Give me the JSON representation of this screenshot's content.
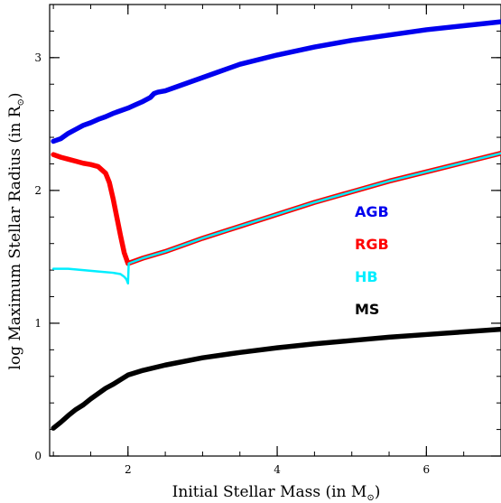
{
  "chart_data": {
    "type": "line",
    "xlabel": {
      "text": "Initial Stellar Mass (in M",
      "subscript": "⊙",
      "close": ")"
    },
    "ylabel": {
      "text": "log Maximum Stellar Radius (in R",
      "subscript": "⊙",
      "close": ")"
    },
    "xlim": [
      0.95,
      7.0
    ],
    "ylim": [
      0,
      3.4
    ],
    "xticks": [
      2,
      4,
      6
    ],
    "yticks": [
      0,
      1,
      2,
      3
    ],
    "grid": false,
    "legend_position": "center-right",
    "series": [
      {
        "name": "AGB",
        "color": "#0000ee",
        "x": [
          1.0,
          1.1,
          1.2,
          1.3,
          1.4,
          1.5,
          1.6,
          1.7,
          1.8,
          1.9,
          2.0,
          2.1,
          2.2,
          2.3,
          2.35,
          2.4,
          2.5,
          2.6,
          2.8,
          3.0,
          3.2,
          3.5,
          4.0,
          4.5,
          5.0,
          5.5,
          6.0,
          6.5,
          7.0
        ],
        "y": [
          2.37,
          2.39,
          2.43,
          2.46,
          2.49,
          2.51,
          2.535,
          2.555,
          2.58,
          2.6,
          2.62,
          2.645,
          2.67,
          2.7,
          2.73,
          2.74,
          2.75,
          2.77,
          2.81,
          2.85,
          2.89,
          2.95,
          3.02,
          3.08,
          3.13,
          3.17,
          3.21,
          3.24,
          3.27
        ]
      },
      {
        "name": "RGB",
        "color": "#ff0000",
        "x": [
          1.0,
          1.1,
          1.2,
          1.3,
          1.4,
          1.5,
          1.6,
          1.7,
          1.75,
          1.8,
          1.85,
          1.9,
          1.95,
          2.0,
          2.2,
          2.5,
          3.0,
          3.5,
          4.0,
          4.5,
          5.0,
          5.5,
          6.0,
          6.5,
          7.0
        ],
        "y": [
          2.27,
          2.25,
          2.235,
          2.22,
          2.205,
          2.195,
          2.18,
          2.13,
          2.06,
          1.94,
          1.8,
          1.66,
          1.53,
          1.45,
          1.49,
          1.54,
          1.64,
          1.73,
          1.82,
          1.91,
          1.99,
          2.07,
          2.14,
          2.21,
          2.28
        ]
      },
      {
        "name": "HB",
        "color": "#00eeff",
        "x": [
          1.0,
          1.2,
          1.4,
          1.6,
          1.8,
          1.9,
          1.95,
          1.98,
          2.0,
          2.01,
          2.2,
          2.5,
          3.0,
          3.5,
          4.0,
          4.5,
          5.0,
          5.5,
          6.0,
          6.5,
          7.0
        ],
        "y": [
          1.41,
          1.41,
          1.4,
          1.39,
          1.38,
          1.37,
          1.35,
          1.33,
          1.3,
          1.45,
          1.49,
          1.54,
          1.64,
          1.73,
          1.82,
          1.91,
          1.99,
          2.07,
          2.14,
          2.21,
          2.28
        ]
      },
      {
        "name": "MS",
        "color": "#000000",
        "x": [
          1.0,
          1.1,
          1.2,
          1.3,
          1.4,
          1.5,
          1.6,
          1.7,
          1.8,
          1.9,
          2.0,
          2.2,
          2.5,
          3.0,
          3.5,
          4.0,
          4.5,
          5.0,
          5.5,
          6.0,
          6.5,
          7.0
        ],
        "y": [
          0.21,
          0.255,
          0.305,
          0.35,
          0.385,
          0.43,
          0.47,
          0.51,
          0.54,
          0.575,
          0.61,
          0.645,
          0.685,
          0.74,
          0.78,
          0.815,
          0.845,
          0.87,
          0.895,
          0.915,
          0.935,
          0.955
        ]
      }
    ]
  }
}
